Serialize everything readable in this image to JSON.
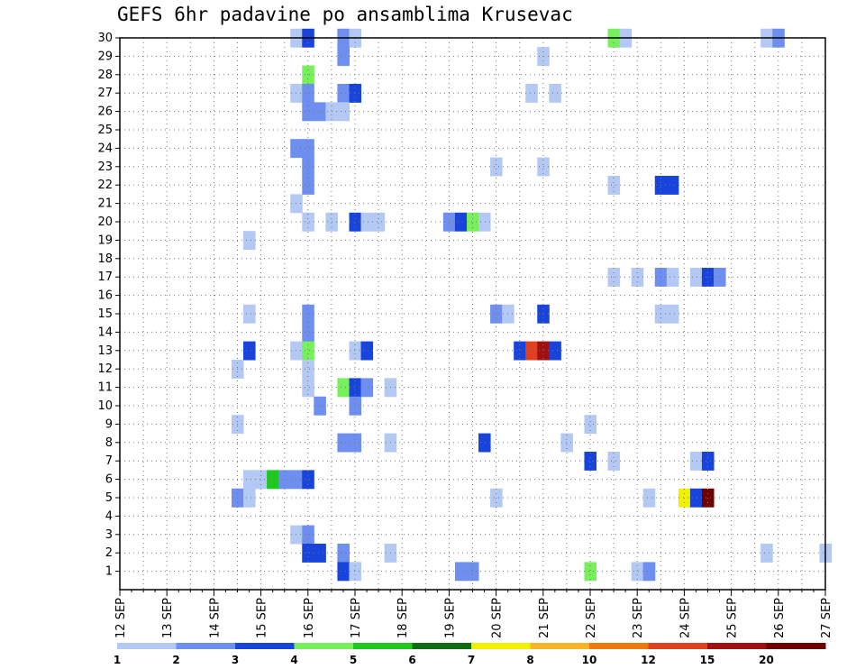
{
  "chart_data": {
    "type": "heatmap",
    "title": "GEFS 6hr padavine po ansamblima Krusevac",
    "xlabel": "",
    "ylabel": "",
    "x_ticks": [
      "12 SEP",
      "13 SEP",
      "14 SEP",
      "15 SEP",
      "16 SEP",
      "17 SEP",
      "18 SEP",
      "19 SEP",
      "20 SEP",
      "21 SEP",
      "22 SEP",
      "23 SEP",
      "24 SEP",
      "25 SEP",
      "26 SEP",
      "27 SEP"
    ],
    "y_ticks": [
      1,
      2,
      3,
      4,
      5,
      6,
      7,
      8,
      9,
      10,
      11,
      12,
      13,
      14,
      15,
      16,
      17,
      18,
      19,
      20,
      21,
      22,
      23,
      24,
      25,
      26,
      27,
      28,
      29,
      30
    ],
    "xlim": [
      0,
      60
    ],
    "ylim": [
      0,
      30
    ],
    "x_unit": "6-hour steps from 12 SEP 00Z",
    "grid": true,
    "legend": {
      "position": "bottom",
      "colors": [
        "#b4c8f4",
        "#6e8ff0",
        "#1844dc",
        "#78f05c",
        "#1ec81e",
        "#106c10",
        "#f0f000",
        "#f8b428",
        "#f07810",
        "#e04020",
        "#a01010",
        "#6e0000"
      ],
      "labels": [
        "1",
        "2",
        "3",
        "4",
        "5",
        "6",
        "7",
        "8",
        "10",
        "12",
        "15",
        "20"
      ]
    },
    "cells": [
      [
        15,
        30,
        0
      ],
      [
        16,
        30,
        2
      ],
      [
        19,
        30,
        1
      ],
      [
        20,
        30,
        0
      ],
      [
        42,
        30,
        3
      ],
      [
        43,
        30,
        0
      ],
      [
        55,
        30,
        0
      ],
      [
        56,
        30,
        1
      ],
      [
        19,
        29,
        1
      ],
      [
        36,
        29,
        0
      ],
      [
        16,
        28,
        3
      ],
      [
        15,
        27,
        0
      ],
      [
        16,
        27,
        1
      ],
      [
        19,
        27,
        1
      ],
      [
        20,
        27,
        2
      ],
      [
        35,
        27,
        0
      ],
      [
        37,
        27,
        0
      ],
      [
        16,
        26,
        1
      ],
      [
        17,
        26,
        1
      ],
      [
        18,
        26,
        0
      ],
      [
        19,
        26,
        0
      ],
      [
        15,
        24,
        1
      ],
      [
        16,
        24,
        1
      ],
      [
        16,
        23,
        1
      ],
      [
        32,
        23,
        0
      ],
      [
        36,
        23,
        0
      ],
      [
        16,
        22,
        1
      ],
      [
        42,
        22,
        0
      ],
      [
        46,
        22,
        2
      ],
      [
        47,
        22,
        2
      ],
      [
        15,
        21,
        0
      ],
      [
        16,
        20,
        0
      ],
      [
        18,
        20,
        0
      ],
      [
        20,
        20,
        2
      ],
      [
        21,
        20,
        0
      ],
      [
        22,
        20,
        0
      ],
      [
        28,
        20,
        1
      ],
      [
        29,
        20,
        2
      ],
      [
        30,
        20,
        3
      ],
      [
        31,
        20,
        0
      ],
      [
        11,
        19,
        0
      ],
      [
        42,
        17,
        0
      ],
      [
        44,
        17,
        0
      ],
      [
        46,
        17,
        1
      ],
      [
        47,
        17,
        0
      ],
      [
        49,
        17,
        0
      ],
      [
        50,
        17,
        2
      ],
      [
        51,
        17,
        1
      ],
      [
        16,
        15,
        1
      ],
      [
        11,
        15,
        0
      ],
      [
        32,
        15,
        1
      ],
      [
        33,
        15,
        0
      ],
      [
        36,
        15,
        2
      ],
      [
        46,
        15,
        0
      ],
      [
        47,
        15,
        0
      ],
      [
        16,
        14,
        1
      ],
      [
        11,
        13,
        2
      ],
      [
        15,
        13,
        0
      ],
      [
        16,
        13,
        3
      ],
      [
        20,
        13,
        0
      ],
      [
        21,
        13,
        2
      ],
      [
        34,
        13,
        2
      ],
      [
        35,
        13,
        9
      ],
      [
        36,
        13,
        10
      ],
      [
        37,
        13,
        2
      ],
      [
        10,
        12,
        0
      ],
      [
        16,
        12,
        0
      ],
      [
        16,
        11,
        0
      ],
      [
        19,
        11,
        3
      ],
      [
        20,
        11,
        2
      ],
      [
        21,
        11,
        1
      ],
      [
        23,
        11,
        0
      ],
      [
        17,
        10,
        1
      ],
      [
        20,
        10,
        1
      ],
      [
        10,
        9,
        0
      ],
      [
        40,
        9,
        0
      ],
      [
        19,
        8,
        1
      ],
      [
        20,
        8,
        1
      ],
      [
        23,
        8,
        0
      ],
      [
        31,
        8,
        2
      ],
      [
        38,
        8,
        0
      ],
      [
        40,
        7,
        2
      ],
      [
        42,
        7,
        0
      ],
      [
        49,
        7,
        0
      ],
      [
        50,
        7,
        2
      ],
      [
        11,
        6,
        0
      ],
      [
        12,
        6,
        0
      ],
      [
        13,
        6,
        4
      ],
      [
        14,
        6,
        1
      ],
      [
        15,
        6,
        1
      ],
      [
        16,
        6,
        2
      ],
      [
        10,
        5,
        1
      ],
      [
        11,
        5,
        0
      ],
      [
        32,
        5,
        0
      ],
      [
        45,
        5,
        0
      ],
      [
        48,
        5,
        6
      ],
      [
        49,
        5,
        2
      ],
      [
        50,
        5,
        11
      ],
      [
        15,
        3,
        0
      ],
      [
        16,
        3,
        1
      ],
      [
        16,
        2,
        2
      ],
      [
        17,
        2,
        2
      ],
      [
        19,
        2,
        1
      ],
      [
        23,
        2,
        0
      ],
      [
        55,
        2,
        0
      ],
      [
        60,
        2,
        0
      ],
      [
        19,
        1,
        2
      ],
      [
        20,
        1,
        0
      ],
      [
        29,
        1,
        1
      ],
      [
        30,
        1,
        1
      ],
      [
        40,
        1,
        3
      ],
      [
        44,
        1,
        0
      ],
      [
        45,
        1,
        1
      ]
    ]
  }
}
